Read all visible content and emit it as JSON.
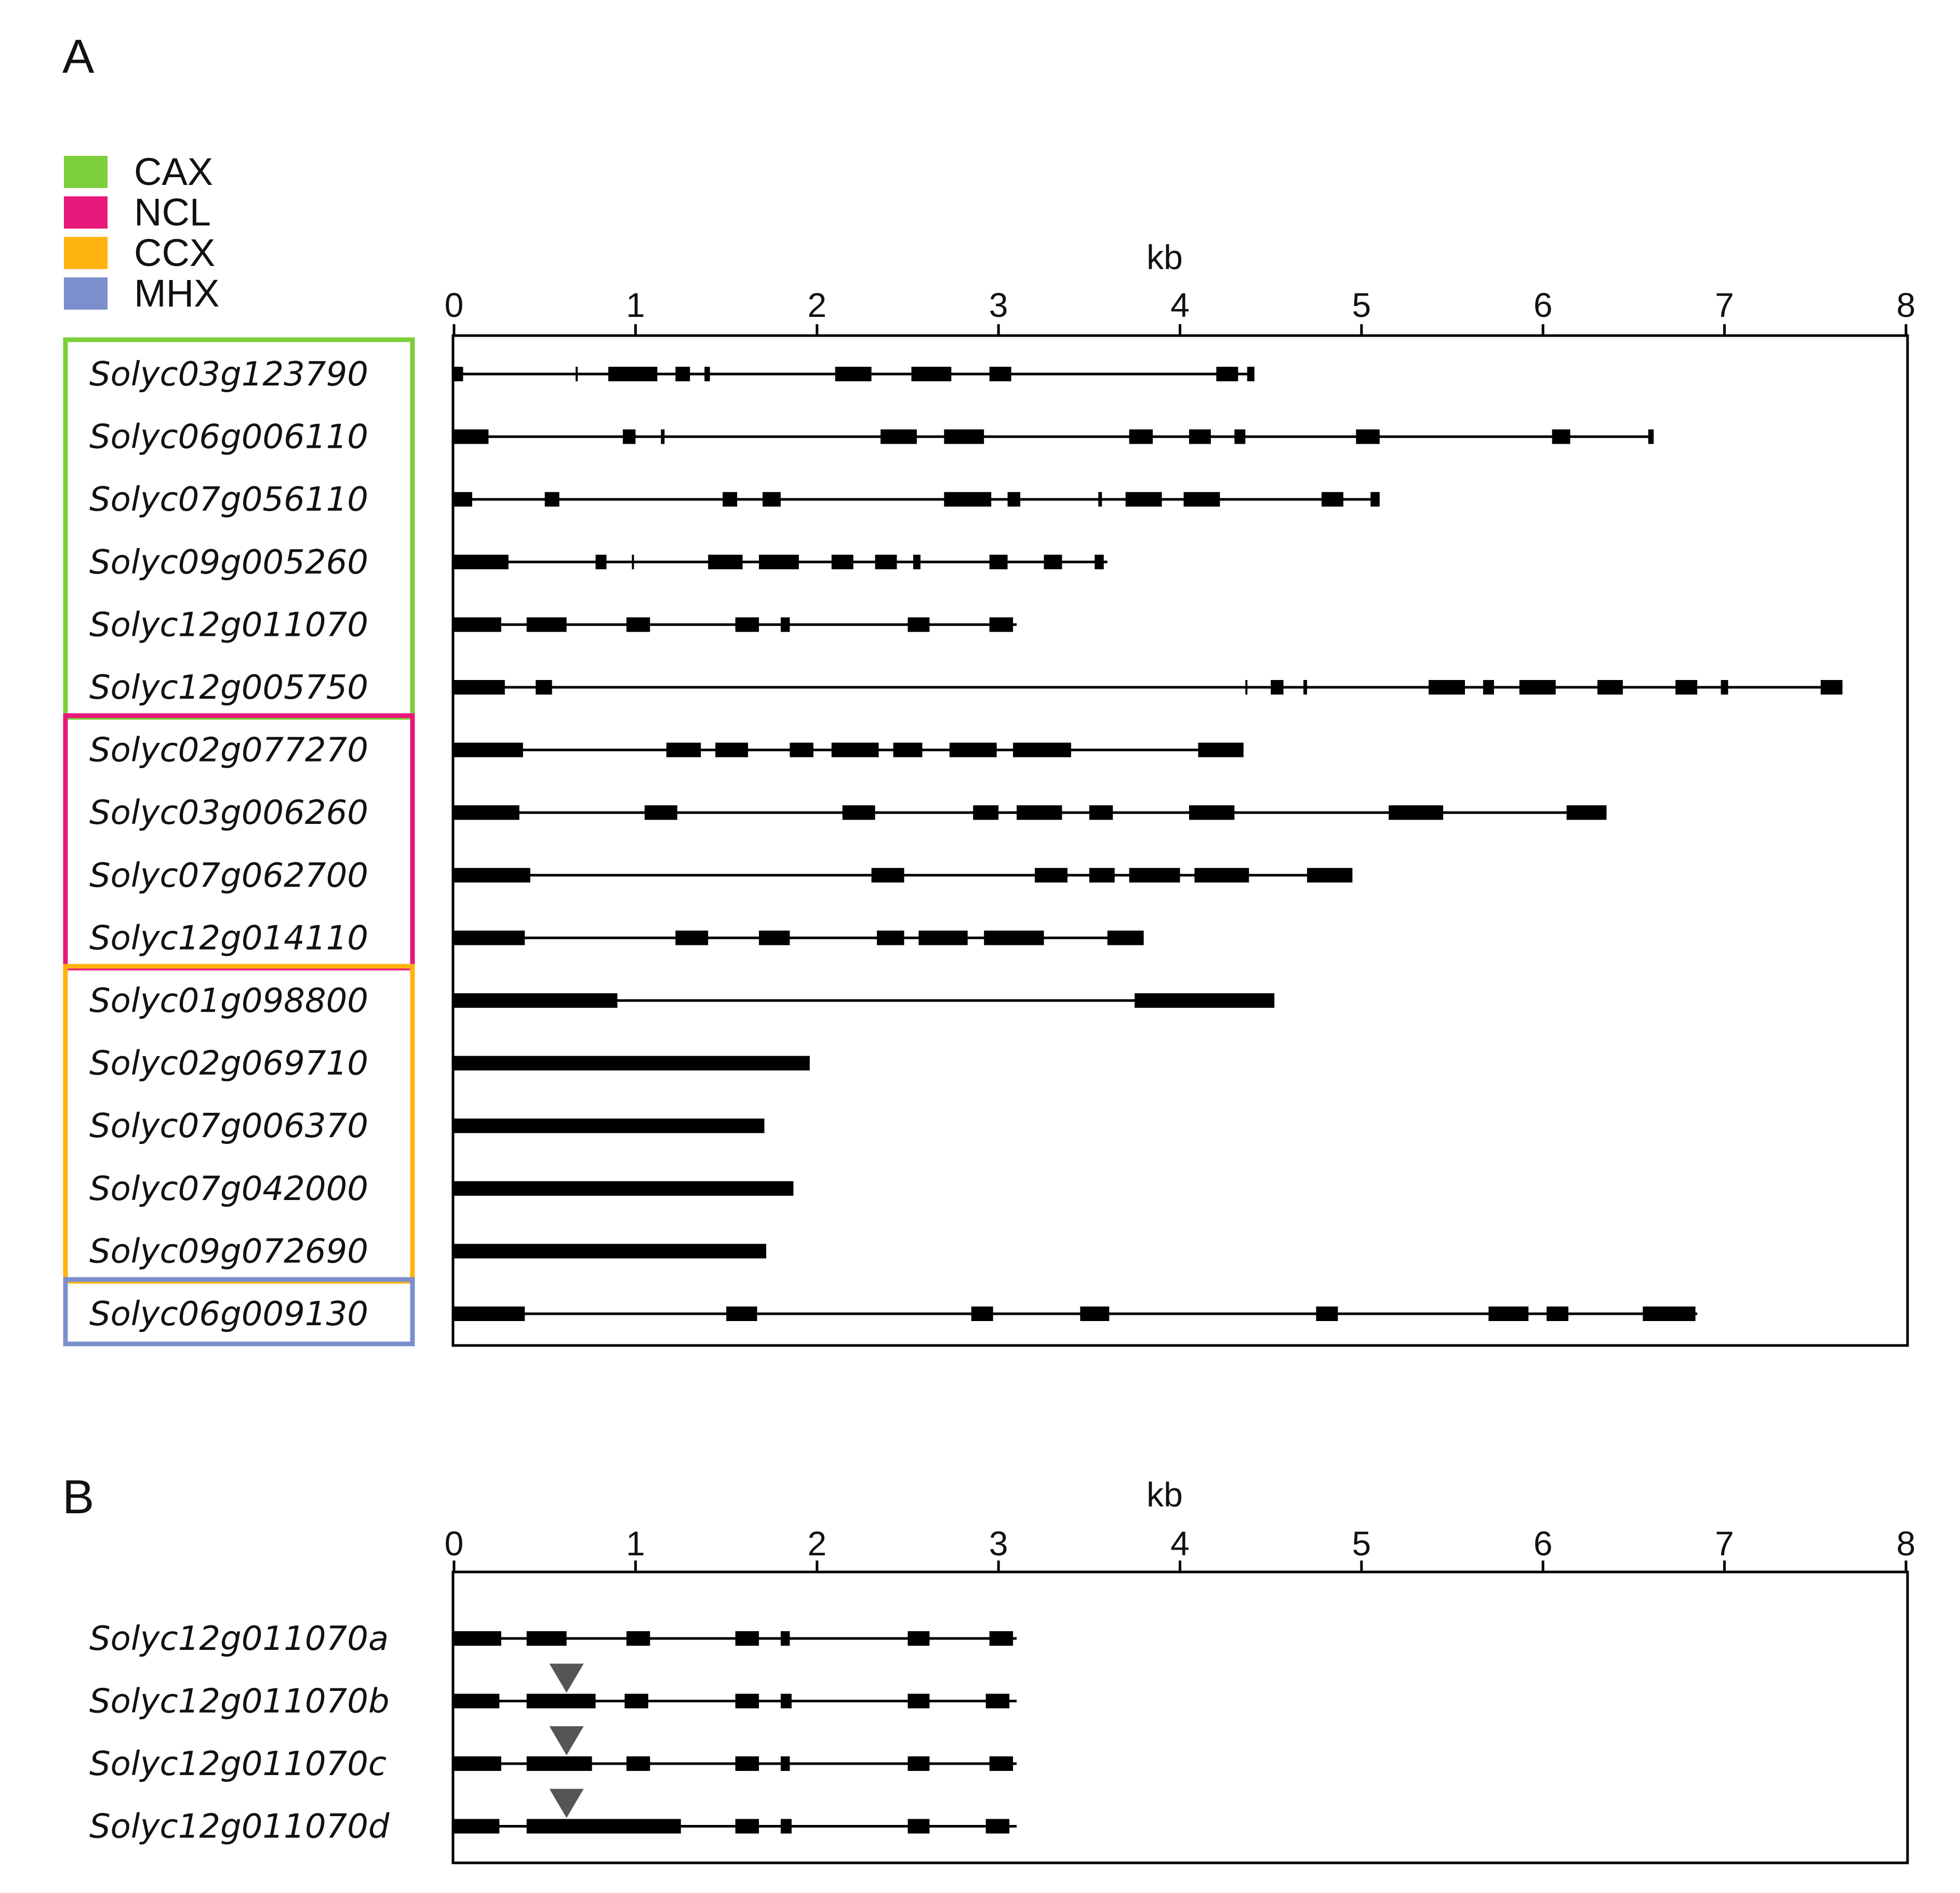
{
  "panel_a": {
    "label": "A",
    "legend": [
      {
        "family": "CAX",
        "color": "#7ccf3a"
      },
      {
        "family": "NCL",
        "color": "#e8177a"
      },
      {
        "family": "CCX",
        "color": "#ffb30f"
      },
      {
        "family": "MHX",
        "color": "#7b8fcc"
      }
    ],
    "axis": {
      "title": "kb",
      "ticks": [
        "0",
        "1",
        "2",
        "3",
        "4",
        "5",
        "6",
        "7",
        "8"
      ],
      "range": [
        0,
        8
      ]
    },
    "genes": [
      {
        "name": "Solyc03g123790",
        "family": "CAX",
        "length": 4.4,
        "exons": [
          [
            0.0,
            0.05
          ],
          [
            0.67,
            0.68
          ],
          [
            0.85,
            1.12
          ],
          [
            1.22,
            1.3
          ],
          [
            1.38,
            1.41
          ],
          [
            2.1,
            2.3
          ],
          [
            2.52,
            2.74
          ],
          [
            2.95,
            3.07
          ],
          [
            4.2,
            4.32
          ],
          [
            4.37,
            4.41
          ]
        ]
      },
      {
        "name": "Solyc06g006110",
        "family": "CAX",
        "length": 6.6,
        "exons": [
          [
            0.0,
            0.19
          ],
          [
            0.93,
            1.0
          ],
          [
            1.14,
            1.16
          ],
          [
            2.35,
            2.55
          ],
          [
            2.7,
            2.92
          ],
          [
            3.72,
            3.85
          ],
          [
            4.05,
            4.17
          ],
          [
            4.3,
            4.36
          ],
          [
            4.97,
            5.1
          ],
          [
            6.05,
            6.15
          ],
          [
            6.58,
            6.61
          ]
        ]
      },
      {
        "name": "Solyc07g056110",
        "family": "CAX",
        "length": 5.1,
        "exons": [
          [
            0.0,
            0.1
          ],
          [
            0.5,
            0.58
          ],
          [
            1.48,
            1.56
          ],
          [
            1.7,
            1.8
          ],
          [
            2.7,
            2.96
          ],
          [
            3.05,
            3.12
          ],
          [
            3.55,
            3.57
          ],
          [
            3.7,
            3.9
          ],
          [
            4.02,
            4.22
          ],
          [
            4.78,
            4.9
          ],
          [
            5.05,
            5.1
          ]
        ]
      },
      {
        "name": "Solyc09g005260",
        "family": "CAX",
        "length": 3.6,
        "exons": [
          [
            0.0,
            0.3
          ],
          [
            0.78,
            0.84
          ],
          [
            0.98,
            0.99
          ],
          [
            1.4,
            1.59
          ],
          [
            1.68,
            1.9
          ],
          [
            2.08,
            2.2
          ],
          [
            2.32,
            2.44
          ],
          [
            2.53,
            2.57
          ],
          [
            2.95,
            3.05
          ],
          [
            3.25,
            3.35
          ],
          [
            3.53,
            3.58
          ]
        ]
      },
      {
        "name": "Solyc12g011070",
        "family": "CAX",
        "length": 3.1,
        "exons": [
          [
            0.0,
            0.26
          ],
          [
            0.4,
            0.62
          ],
          [
            0.95,
            1.08
          ],
          [
            1.55,
            1.68
          ],
          [
            1.8,
            1.85
          ],
          [
            2.5,
            2.62
          ],
          [
            2.95,
            3.08
          ]
        ]
      },
      {
        "name": "Solyc12g005750",
        "family": "CAX",
        "length": 7.65,
        "exons": [
          [
            0.0,
            0.28
          ],
          [
            0.45,
            0.54
          ],
          [
            4.36,
            4.37
          ],
          [
            4.5,
            4.57
          ],
          [
            4.68,
            4.7
          ],
          [
            5.37,
            5.57
          ],
          [
            5.67,
            5.73
          ],
          [
            5.87,
            6.07
          ],
          [
            6.3,
            6.44
          ],
          [
            6.73,
            6.85
          ],
          [
            6.98,
            7.02
          ],
          [
            7.53,
            7.65
          ]
        ]
      },
      {
        "name": "Solyc02g077270",
        "family": "NCL",
        "length": 4.35,
        "exons": [
          [
            0.0,
            0.38
          ],
          [
            1.17,
            1.36
          ],
          [
            1.44,
            1.62
          ],
          [
            1.85,
            1.98
          ],
          [
            2.08,
            2.34
          ],
          [
            2.42,
            2.58
          ],
          [
            2.73,
            2.99
          ],
          [
            3.08,
            3.4
          ],
          [
            4.1,
            4.35
          ]
        ]
      },
      {
        "name": "Solyc03g006260",
        "family": "NCL",
        "length": 6.35,
        "exons": [
          [
            0.0,
            0.36
          ],
          [
            1.05,
            1.23
          ],
          [
            2.14,
            2.32
          ],
          [
            2.86,
            3.0
          ],
          [
            3.1,
            3.35
          ],
          [
            3.5,
            3.63
          ],
          [
            4.05,
            4.3
          ],
          [
            5.15,
            5.45
          ],
          [
            6.13,
            6.35
          ]
        ]
      },
      {
        "name": "Solyc07g062700",
        "family": "NCL",
        "length": 4.95,
        "exons": [
          [
            0.0,
            0.42
          ],
          [
            2.3,
            2.48
          ],
          [
            3.2,
            3.38
          ],
          [
            3.5,
            3.64
          ],
          [
            3.72,
            4.0
          ],
          [
            4.08,
            4.38
          ],
          [
            4.7,
            4.95
          ]
        ]
      },
      {
        "name": "Solyc12g014110",
        "family": "NCL",
        "length": 3.8,
        "exons": [
          [
            0.0,
            0.39
          ],
          [
            1.22,
            1.4
          ],
          [
            1.68,
            1.85
          ],
          [
            2.33,
            2.48
          ],
          [
            2.56,
            2.83
          ],
          [
            2.92,
            3.25
          ],
          [
            3.6,
            3.8
          ]
        ]
      },
      {
        "name": "Solyc01g098800",
        "family": "CCX",
        "length": 4.5,
        "exons": [
          [
            0.0,
            0.9
          ],
          [
            3.75,
            4.52
          ]
        ]
      },
      {
        "name": "Solyc02g069710",
        "family": "CCX",
        "length": 1.95,
        "exons": [
          [
            0.0,
            1.96
          ]
        ]
      },
      {
        "name": "Solyc07g006370",
        "family": "CCX",
        "length": 1.7,
        "exons": [
          [
            0.0,
            1.71
          ]
        ]
      },
      {
        "name": "Solyc07g042000",
        "family": "CCX",
        "length": 1.87,
        "exons": [
          [
            0.0,
            1.87
          ]
        ]
      },
      {
        "name": "Solyc09g072690",
        "family": "CCX",
        "length": 1.72,
        "exons": [
          [
            0.0,
            1.72
          ]
        ]
      },
      {
        "name": "Solyc06g009130",
        "family": "MHX",
        "length": 6.85,
        "exons": [
          [
            0.0,
            0.39
          ],
          [
            1.5,
            1.67
          ],
          [
            2.85,
            2.97
          ],
          [
            3.45,
            3.61
          ],
          [
            4.75,
            4.87
          ],
          [
            5.7,
            5.92
          ],
          [
            6.02,
            6.14
          ],
          [
            6.55,
            6.84
          ]
        ]
      }
    ]
  },
  "panel_b": {
    "label": "B",
    "axis": {
      "title": "kb",
      "ticks": [
        "0",
        "1",
        "2",
        "3",
        "4",
        "5",
        "6",
        "7",
        "8"
      ],
      "range": [
        0,
        8
      ]
    },
    "genes": [
      {
        "name": "Solyc12g011070a",
        "length": 3.1,
        "insertion_marker": false,
        "exons": [
          [
            0.0,
            0.26
          ],
          [
            0.4,
            0.62
          ],
          [
            0.95,
            1.08
          ],
          [
            1.55,
            1.68
          ],
          [
            1.8,
            1.85
          ],
          [
            2.5,
            2.62
          ],
          [
            2.95,
            3.08
          ]
        ]
      },
      {
        "name": "Solyc12g011070b",
        "length": 3.1,
        "insertion_marker": true,
        "marker_kb": 0.62,
        "exons": [
          [
            0.0,
            0.25
          ],
          [
            0.4,
            0.78
          ],
          [
            0.94,
            1.07
          ],
          [
            1.55,
            1.68
          ],
          [
            1.8,
            1.86
          ],
          [
            2.5,
            2.62
          ],
          [
            2.93,
            3.06
          ]
        ]
      },
      {
        "name": "Solyc12g011070c",
        "length": 3.1,
        "insertion_marker": true,
        "marker_kb": 0.62,
        "exons": [
          [
            0.0,
            0.26
          ],
          [
            0.4,
            0.76
          ],
          [
            0.95,
            1.08
          ],
          [
            1.55,
            1.68
          ],
          [
            1.8,
            1.85
          ],
          [
            2.5,
            2.62
          ],
          [
            2.95,
            3.08
          ]
        ]
      },
      {
        "name": "Solyc12g011070d",
        "length": 3.1,
        "insertion_marker": true,
        "marker_kb": 0.62,
        "exons": [
          [
            0.0,
            0.25
          ],
          [
            0.4,
            1.25
          ],
          [
            1.55,
            1.68
          ],
          [
            1.8,
            1.86
          ],
          [
            2.5,
            2.62
          ],
          [
            2.93,
            3.06
          ]
        ]
      }
    ]
  }
}
